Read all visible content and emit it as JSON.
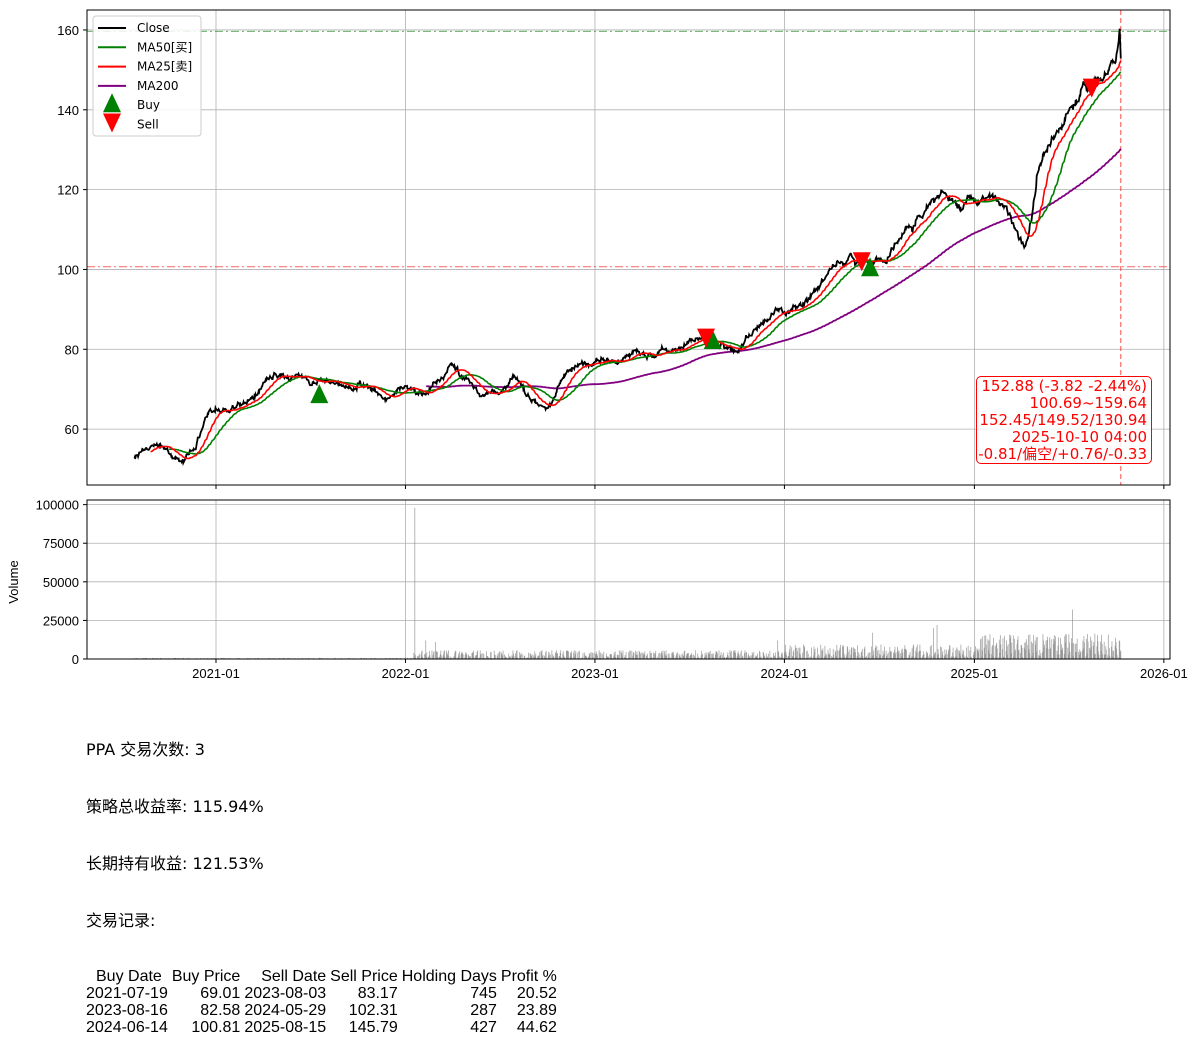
{
  "chart_data": [
    {
      "type": "line",
      "title": "",
      "xlabel": "",
      "ylabel": "",
      "ylim": [
        46,
        165
      ],
      "yticks": [
        60,
        80,
        100,
        120,
        140,
        160
      ],
      "xticks": [
        "2021-01",
        "2022-01",
        "2023-01",
        "2024-01",
        "2025-01",
        "2026-01"
      ],
      "grid": true,
      "legend_position": "top-left",
      "legend": [
        "Close",
        "MA50[买]",
        "MA25[卖]",
        "MA200",
        "Buy",
        "Sell"
      ],
      "colors": {
        "Close": "#000000",
        "MA50": "#008000",
        "MA25": "#ff0000",
        "MA200": "#800080",
        "Buy": "#008000",
        "Sell": "#ff0000"
      },
      "close_series_monthly": [
        [
          "2020-07-27",
          53
        ],
        [
          "2020-08-15",
          55
        ],
        [
          "2020-09-10",
          56
        ],
        [
          "2020-10-05",
          54
        ],
        [
          "2020-11-02",
          52
        ],
        [
          "2020-11-20",
          55
        ],
        [
          "2020-12-10",
          62
        ],
        [
          "2021-01-04",
          65
        ],
        [
          "2021-02-01",
          65
        ],
        [
          "2021-03-01",
          67
        ],
        [
          "2021-04-01",
          71
        ],
        [
          "2021-05-03",
          73
        ],
        [
          "2021-06-01",
          73
        ],
        [
          "2021-07-01",
          71
        ],
        [
          "2021-08-02",
          72
        ],
        [
          "2021-09-01",
          71
        ],
        [
          "2021-10-01",
          71
        ],
        [
          "2021-11-01",
          70
        ],
        [
          "2021-12-01",
          68
        ],
        [
          "2022-01-03",
          71
        ],
        [
          "2022-02-01",
          69
        ],
        [
          "2022-03-01",
          72
        ],
        [
          "2022-04-01",
          76
        ],
        [
          "2022-05-02",
          72
        ],
        [
          "2022-06-01",
          68
        ],
        [
          "2022-07-01",
          69
        ],
        [
          "2022-08-01",
          73
        ],
        [
          "2022-09-01",
          67
        ],
        [
          "2022-10-03",
          65
        ],
        [
          "2022-11-01",
          73
        ],
        [
          "2022-12-01",
          76
        ],
        [
          "2023-01-03",
          77
        ],
        [
          "2023-02-01",
          77
        ],
        [
          "2023-03-01",
          78
        ],
        [
          "2023-04-03",
          79
        ],
        [
          "2023-05-01",
          78
        ],
        [
          "2023-06-01",
          80
        ],
        [
          "2023-07-03",
          82
        ],
        [
          "2023-08-01",
          83
        ],
        [
          "2023-09-01",
          81
        ],
        [
          "2023-10-02",
          79
        ],
        [
          "2023-11-01",
          84
        ],
        [
          "2023-12-01",
          88
        ],
        [
          "2024-01-02",
          89
        ],
        [
          "2024-02-01",
          91
        ],
        [
          "2024-03-01",
          95
        ],
        [
          "2024-04-01",
          100
        ],
        [
          "2024-05-01",
          103
        ],
        [
          "2024-06-03",
          102
        ],
        [
          "2024-07-01",
          103
        ],
        [
          "2024-08-01",
          106
        ],
        [
          "2024-09-03",
          110
        ],
        [
          "2024-10-01",
          116
        ],
        [
          "2024-11-01",
          120
        ],
        [
          "2024-12-02",
          116
        ],
        [
          "2025-01-02",
          117
        ],
        [
          "2025-02-03",
          118
        ],
        [
          "2025-03-03",
          116
        ],
        [
          "2025-04-07",
          106
        ],
        [
          "2025-04-21",
          112
        ],
        [
          "2025-05-01",
          123
        ],
        [
          "2025-06-02",
          133
        ],
        [
          "2025-07-01",
          140
        ],
        [
          "2025-08-01",
          146
        ],
        [
          "2025-09-02",
          148
        ],
        [
          "2025-10-01",
          152
        ],
        [
          "2025-10-08",
          159.64
        ],
        [
          "2025-10-10",
          152.88
        ]
      ],
      "reference_lines": {
        "high": 159.64,
        "low": 100.69,
        "last_date": "2025-10-10"
      },
      "buy_points": [
        [
          "2021-07-19",
          69.01
        ],
        [
          "2023-08-16",
          82.58
        ],
        [
          "2024-06-14",
          100.81
        ]
      ],
      "sell_points": [
        [
          "2023-08-03",
          83.17
        ],
        [
          "2024-05-29",
          102.31
        ],
        [
          "2025-08-15",
          145.79
        ]
      ],
      "info_box": [
        "152.88 (-3.82 -2.44%)",
        "100.69~159.64",
        "152.45/149.52/130.94",
        "2025-10-10 04:00",
        "-0.81/偏空/+0.76/-0.33"
      ]
    },
    {
      "type": "bar",
      "ylabel": "Volume",
      "ylim": [
        0,
        103000
      ],
      "yticks": [
        0,
        25000,
        50000,
        75000,
        100000
      ],
      "grid": true,
      "color": "#808080",
      "notable_volumes": [
        [
          "2022-01-20",
          98000
        ],
        [
          "2022-02-10",
          12000
        ],
        [
          "2022-02-28",
          11000
        ],
        [
          "2023-12-20",
          12000
        ],
        [
          "2024-06-20",
          17000
        ],
        [
          "2024-10-15",
          20000
        ],
        [
          "2024-10-22",
          22000
        ],
        [
          "2025-03-20",
          13000
        ],
        [
          "2025-05-15",
          12000
        ],
        [
          "2025-07-10",
          32000
        ],
        [
          "2025-08-20",
          11000
        ]
      ]
    }
  ],
  "summary": {
    "trade_count": "PPA 交易次数: 3",
    "strategy_return": "策略总收益率: 115.94%",
    "buy_hold_return": "长期持有收益: 121.53%",
    "records_label": "交易记录:",
    "table_headers": [
      "Buy Date",
      "Buy Price",
      "Sell Date",
      "Sell Price",
      "Holding Days",
      "Profit %"
    ],
    "table_rows": [
      [
        "2021-07-19",
        "69.01",
        "2023-08-03",
        "83.17",
        "745",
        "20.52"
      ],
      [
        "2023-08-16",
        "82.58",
        "2024-05-29",
        "102.31",
        "287",
        "23.89"
      ],
      [
        "2024-06-14",
        "100.81",
        "2025-08-15",
        "145.79",
        "427",
        "44.62"
      ]
    ]
  }
}
